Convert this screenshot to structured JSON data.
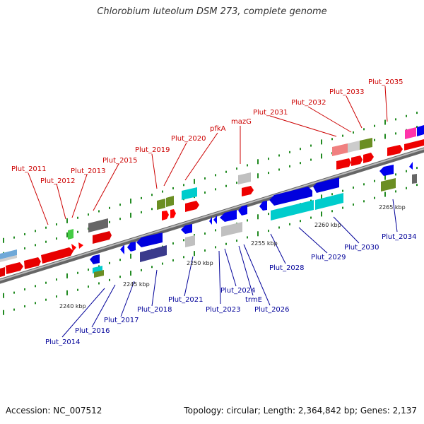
{
  "title": "Chlorobium luteolum DSM 273, complete genome",
  "footer": {
    "accession": "Accession: NC_007512",
    "summary": "Topology: circular; Length: 2,364,842 bp; Genes: 2,137"
  },
  "colors": {
    "forward_label": "#cc0000",
    "reverse_label": "#000099",
    "backbone": "#888888",
    "tick": "#228b22"
  },
  "scale_labels": [
    "2240 kbp",
    "2245 kbp",
    "2250 kbp",
    "2255 kbp",
    "2260 kbp",
    "2265 kbp"
  ],
  "top_labels": [
    "Plut_2011",
    "Plut_2012",
    "Plut_2013",
    "Plut_2015",
    "Plut_2019",
    "Plut_2020",
    "pfkA",
    "mazG",
    "Plut_2031",
    "Plut_2032",
    "Plut_2033",
    "Plut_2035"
  ],
  "bottom_labels": [
    "Plut_2014",
    "Plut_2016",
    "Plut_2017",
    "Plut_2018",
    "Plut_2021",
    "Plut_2023",
    "Plut_2024",
    "trmE",
    "Plut_2026",
    "Plut_2028",
    "Plut_2029",
    "Plut_2030",
    "Plut_2034"
  ]
}
